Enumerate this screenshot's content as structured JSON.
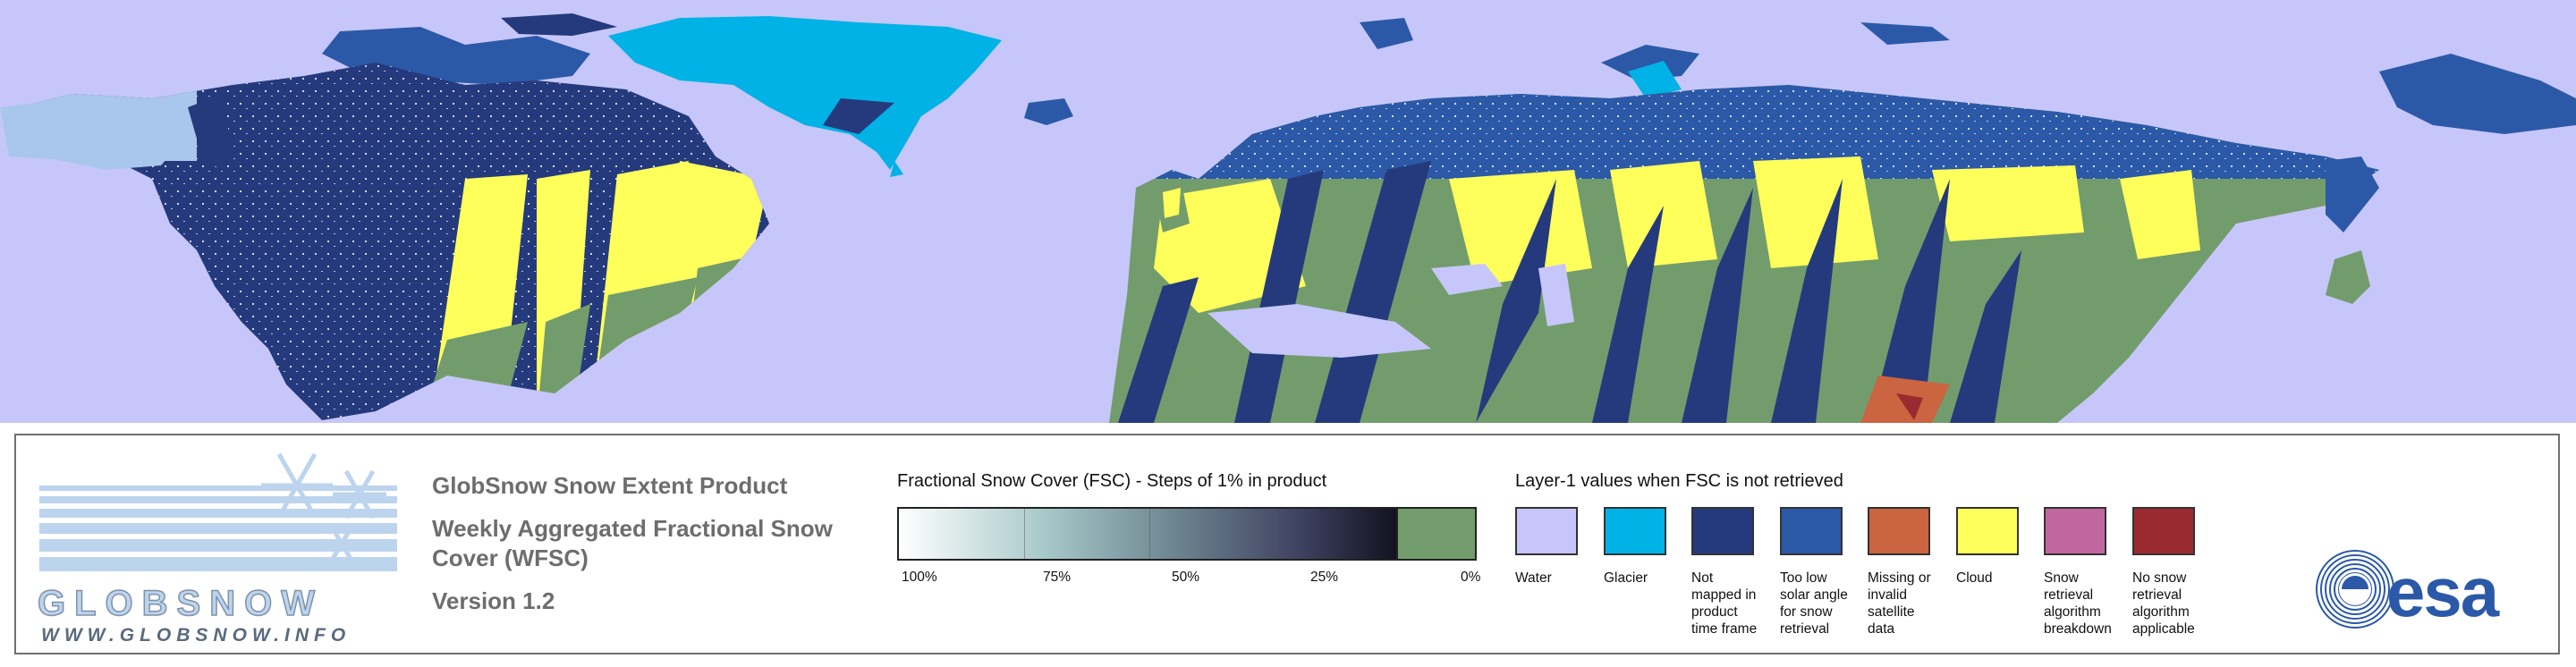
{
  "colors": {
    "water": "#c7c6fa",
    "glacier": "#00b2e5",
    "not_mapped": "#253a7d",
    "low_sun": "#2b59a8",
    "missing": "#cb6440",
    "cloud": "#ffff5c",
    "breakdown": "#c0679f",
    "no_snow_retrieval": "#9a2a2f",
    "snow_free": "#739c6c"
  },
  "logo": {
    "brand": "GLOBSNOW",
    "url": "WWW.GLOBSNOW.INFO"
  },
  "product": {
    "title": "GlobSnow Snow Extent Product",
    "subtitle_line1": "Weekly Aggregated Fractional Snow",
    "subtitle_line2": "Cover (WFSC)",
    "version": "Version 1.2"
  },
  "fsc_scale": {
    "title": "Fractional Snow Cover (FSC) - Steps of 1% in product",
    "ticks": [
      "100%",
      "75%",
      "50%",
      "25%",
      "0%"
    ]
  },
  "layer1": {
    "title": "Layer-1 values when FSC is not retrieved",
    "items": [
      {
        "label_lines": [
          "Water"
        ],
        "color_key": "water"
      },
      {
        "label_lines": [
          "Glacier"
        ],
        "color_key": "glacier"
      },
      {
        "label_lines": [
          "Not",
          "mapped in",
          "product",
          "time frame"
        ],
        "color_key": "not_mapped"
      },
      {
        "label_lines": [
          "Too low",
          "solar angle",
          "for snow",
          "retrieval"
        ],
        "color_key": "low_sun"
      },
      {
        "label_lines": [
          "Missing or",
          "invalid satellite",
          "data"
        ],
        "color_key": "missing"
      },
      {
        "label_lines": [
          "Cloud"
        ],
        "color_key": "cloud"
      },
      {
        "label_lines": [
          "Snow retrieval",
          "algorithm",
          "breakdown"
        ],
        "color_key": "breakdown"
      },
      {
        "label_lines": [
          "No snow",
          "retrieval",
          "algorithm",
          "applicable"
        ],
        "color_key": "no_snow_retrieval"
      }
    ]
  },
  "esa_logo": {
    "text": "esa"
  }
}
